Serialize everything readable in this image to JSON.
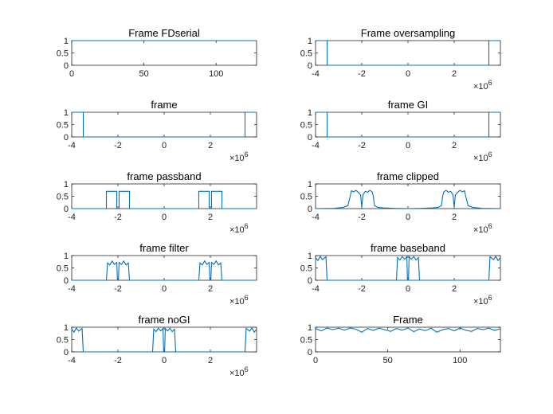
{
  "figure": {
    "background": "#ffffff",
    "line_color": "#0072BD"
  },
  "chart_data": [
    {
      "type": "line",
      "title": "Frame FDserial",
      "xlim": [
        0,
        128
      ],
      "ylim": [
        0,
        1
      ],
      "xticks": [
        {
          "v": 0,
          "label": "0"
        },
        {
          "v": 50,
          "label": "50"
        },
        {
          "v": 100,
          "label": "100"
        }
      ],
      "yticks": [
        {
          "v": 0,
          "label": "0"
        },
        {
          "v": 0.5,
          "label": "0.5"
        },
        {
          "v": 1,
          "label": "1"
        }
      ],
      "x_exponent": "",
      "series": [
        {
          "x": [
            0,
            128
          ],
          "y": [
            1,
            1
          ]
        }
      ]
    },
    {
      "type": "line",
      "title": "Frame oversampling",
      "xlim": [
        -4,
        4
      ],
      "ylim": [
        0,
        1
      ],
      "xticks": [
        {
          "v": -4,
          "label": "-4"
        },
        {
          "v": -2,
          "label": "-2"
        },
        {
          "v": 0,
          "label": "0"
        },
        {
          "v": 2,
          "label": "2"
        }
      ],
      "yticks": [
        {
          "v": 0,
          "label": "0"
        },
        {
          "v": 0.5,
          "label": "0.5"
        },
        {
          "v": 1,
          "label": "1"
        }
      ],
      "x_exponent": "6",
      "series": [
        {
          "x": [
            -4,
            -3.5,
            -3.5,
            3.5,
            3.5,
            4
          ],
          "y": [
            1,
            1,
            0,
            0,
            1,
            1
          ]
        }
      ]
    },
    {
      "type": "line",
      "title": "frame",
      "xlim": [
        -4,
        4
      ],
      "ylim": [
        0,
        1
      ],
      "xticks": [
        {
          "v": -4,
          "label": "-4"
        },
        {
          "v": -2,
          "label": "-2"
        },
        {
          "v": 0,
          "label": "0"
        },
        {
          "v": 2,
          "label": "2"
        }
      ],
      "yticks": [
        {
          "v": 0,
          "label": "0"
        },
        {
          "v": 0.5,
          "label": "0.5"
        },
        {
          "v": 1,
          "label": "1"
        }
      ],
      "x_exponent": "6",
      "series": [
        {
          "x": [
            -4,
            -3.5,
            -3.5,
            3.5,
            3.5,
            4
          ],
          "y": [
            1,
            1,
            0,
            0,
            1,
            1
          ]
        }
      ]
    },
    {
      "type": "line",
      "title": "frame GI",
      "xlim": [
        -4,
        4
      ],
      "ylim": [
        0,
        1
      ],
      "xticks": [
        {
          "v": -4,
          "label": "-4"
        },
        {
          "v": -2,
          "label": "-2"
        },
        {
          "v": 0,
          "label": "0"
        },
        {
          "v": 2,
          "label": "2"
        }
      ],
      "yticks": [
        {
          "v": 0,
          "label": "0"
        },
        {
          "v": 0.5,
          "label": "0.5"
        },
        {
          "v": 1,
          "label": "1"
        }
      ],
      "x_exponent": "6",
      "series": [
        {
          "x": [
            -4,
            -3.5,
            -3.5,
            3.5,
            3.5,
            4
          ],
          "y": [
            1,
            1,
            0,
            0,
            1,
            1
          ]
        }
      ]
    },
    {
      "type": "line",
      "title": "frame passband",
      "xlim": [
        -4,
        4
      ],
      "ylim": [
        0,
        1
      ],
      "xticks": [
        {
          "v": -4,
          "label": "-4"
        },
        {
          "v": -2,
          "label": "-2"
        },
        {
          "v": 0,
          "label": "0"
        },
        {
          "v": 2,
          "label": "2"
        }
      ],
      "yticks": [
        {
          "v": 0,
          "label": "0"
        },
        {
          "v": 0.5,
          "label": "0.5"
        },
        {
          "v": 1,
          "label": "1"
        }
      ],
      "x_exponent": "6",
      "series": [
        {
          "x": [
            -4,
            -2.5,
            -2.5,
            -2.05,
            -2.05,
            -1.95,
            -1.95,
            -1.5,
            -1.5,
            1.5,
            1.5,
            1.95,
            1.95,
            2.05,
            2.05,
            2.5,
            2.5,
            4
          ],
          "y": [
            0,
            0,
            0.7,
            0.7,
            0,
            0,
            0.7,
            0.7,
            0,
            0,
            0.7,
            0.7,
            0,
            0,
            0.7,
            0.7,
            0,
            0
          ]
        }
      ]
    },
    {
      "type": "line",
      "title": "frame clipped",
      "xlim": [
        -4,
        4
      ],
      "ylim": [
        0,
        1
      ],
      "xticks": [
        {
          "v": -4,
          "label": "-4"
        },
        {
          "v": -2,
          "label": "-2"
        },
        {
          "v": 0,
          "label": "0"
        },
        {
          "v": 2,
          "label": "2"
        }
      ],
      "yticks": [
        {
          "v": 0,
          "label": "0"
        },
        {
          "v": 0.5,
          "label": "0.5"
        },
        {
          "v": 1,
          "label": "1"
        }
      ],
      "x_exponent": "6",
      "series": [
        {
          "x": [
            -4,
            -3.2,
            -3.0,
            -2.8,
            -2.6,
            -2.5,
            -2.45,
            -2.35,
            -2.25,
            -2.15,
            -2.05,
            -2.0,
            -1.95,
            -1.85,
            -1.75,
            -1.65,
            -1.55,
            -1.5,
            -1.45,
            -1.3,
            -1.1,
            -0.6,
            0,
            0.6,
            1.1,
            1.3,
            1.45,
            1.5,
            1.55,
            1.65,
            1.75,
            1.85,
            1.95,
            2.0,
            2.05,
            2.15,
            2.25,
            2.35,
            2.45,
            2.5,
            2.6,
            2.8,
            3.0,
            3.2,
            4
          ],
          "y": [
            0.0,
            0.01,
            0.03,
            0.05,
            0.12,
            0.5,
            0.72,
            0.68,
            0.74,
            0.66,
            0.55,
            0.05,
            0.55,
            0.7,
            0.66,
            0.74,
            0.68,
            0.5,
            0.12,
            0.05,
            0.03,
            0.01,
            0.0,
            0.01,
            0.03,
            0.05,
            0.12,
            0.5,
            0.68,
            0.74,
            0.66,
            0.7,
            0.55,
            0.05,
            0.55,
            0.66,
            0.74,
            0.68,
            0.72,
            0.5,
            0.12,
            0.05,
            0.03,
            0.01,
            0.0
          ]
        }
      ]
    },
    {
      "type": "line",
      "title": "frame filter",
      "xlim": [
        -4,
        4
      ],
      "ylim": [
        0,
        1
      ],
      "xticks": [
        {
          "v": -4,
          "label": "-4"
        },
        {
          "v": -2,
          "label": "-2"
        },
        {
          "v": 0,
          "label": "0"
        },
        {
          "v": 2,
          "label": "2"
        }
      ],
      "yticks": [
        {
          "v": 0,
          "label": "0"
        },
        {
          "v": 0.5,
          "label": "0.5"
        },
        {
          "v": 1,
          "label": "1"
        }
      ],
      "x_exponent": "6",
      "series": [
        {
          "x": [
            -4,
            -2.5,
            -2.45,
            -2.35,
            -2.25,
            -2.15,
            -2.05,
            -2.02,
            -1.98,
            -1.95,
            -1.85,
            -1.75,
            -1.65,
            -1.55,
            -1.5,
            1.5,
            1.55,
            1.65,
            1.75,
            1.85,
            1.95,
            1.98,
            2.02,
            2.05,
            2.15,
            2.25,
            2.35,
            2.45,
            2.5,
            4
          ],
          "y": [
            0,
            0,
            0.7,
            0.62,
            0.78,
            0.64,
            0.72,
            0,
            0,
            0.72,
            0.64,
            0.78,
            0.62,
            0.7,
            0,
            0,
            0.7,
            0.62,
            0.78,
            0.64,
            0.72,
            0,
            0,
            0.72,
            0.64,
            0.78,
            0.62,
            0.7,
            0,
            0
          ]
        }
      ]
    },
    {
      "type": "line",
      "title": "frame baseband",
      "xlim": [
        -4,
        4
      ],
      "ylim": [
        0,
        1
      ],
      "xticks": [
        {
          "v": -4,
          "label": "-4"
        },
        {
          "v": -2,
          "label": "-2"
        },
        {
          "v": 0,
          "label": "0"
        },
        {
          "v": 2,
          "label": "2"
        }
      ],
      "yticks": [
        {
          "v": 0,
          "label": "0"
        },
        {
          "v": 0.5,
          "label": "0.5"
        },
        {
          "v": 1,
          "label": "1"
        }
      ],
      "x_exponent": "6",
      "series": [
        {
          "x": [
            -4,
            -3.9,
            -3.8,
            -3.7,
            -3.55,
            -3.5,
            3.5,
            3.55,
            3.7,
            3.8,
            3.9,
            4
          ],
          "y": [
            0.92,
            0.8,
            0.97,
            0.84,
            0.95,
            0,
            0,
            0.95,
            0.84,
            0.97,
            0.8,
            0.92
          ]
        },
        {
          "x": [
            -0.5,
            -0.45,
            -0.35,
            -0.25,
            -0.15,
            -0.05,
            -0.02,
            0.02,
            0.05,
            0.15,
            0.25,
            0.35,
            0.45,
            0.5
          ],
          "y": [
            0,
            0.92,
            0.82,
            0.96,
            0.85,
            0.95,
            0,
            0,
            0.95,
            0.85,
            0.96,
            0.82,
            0.92,
            0
          ]
        }
      ]
    },
    {
      "type": "line",
      "title": "frame noGI",
      "xlim": [
        -4,
        4
      ],
      "ylim": [
        0,
        1
      ],
      "xticks": [
        {
          "v": -4,
          "label": "-4"
        },
        {
          "v": -2,
          "label": "-2"
        },
        {
          "v": 0,
          "label": "0"
        },
        {
          "v": 2,
          "label": "2"
        }
      ],
      "yticks": [
        {
          "v": 0,
          "label": "0"
        },
        {
          "v": 0.5,
          "label": "0.5"
        },
        {
          "v": 1,
          "label": "1"
        }
      ],
      "x_exponent": "6",
      "series": [
        {
          "x": [
            -4,
            -3.9,
            -3.8,
            -3.7,
            -3.55,
            -3.5,
            3.5,
            3.55,
            3.7,
            3.8,
            3.9,
            4
          ],
          "y": [
            0.92,
            0.8,
            0.97,
            0.84,
            0.95,
            0,
            0,
            0.95,
            0.84,
            0.97,
            0.8,
            0.92
          ]
        },
        {
          "x": [
            -0.5,
            -0.45,
            -0.35,
            -0.25,
            -0.15,
            -0.05,
            -0.02,
            0.02,
            0.05,
            0.15,
            0.25,
            0.35,
            0.45,
            0.5
          ],
          "y": [
            0,
            0.92,
            0.82,
            0.96,
            0.85,
            0.95,
            0,
            0,
            0.95,
            0.85,
            0.96,
            0.82,
            0.92,
            0
          ]
        }
      ]
    },
    {
      "type": "line",
      "title": "Frame",
      "xlim": [
        0,
        128
      ],
      "ylim": [
        0,
        1
      ],
      "xticks": [
        {
          "v": 0,
          "label": "0"
        },
        {
          "v": 50,
          "label": "50"
        },
        {
          "v": 100,
          "label": "100"
        }
      ],
      "yticks": [
        {
          "v": 0,
          "label": "0"
        },
        {
          "v": 0.5,
          "label": "0.5"
        },
        {
          "v": 1,
          "label": "1"
        }
      ],
      "x_exponent": "",
      "series": [
        {
          "x": [
            0,
            4,
            8,
            12,
            16,
            20,
            24,
            28,
            32,
            36,
            40,
            44,
            48,
            52,
            56,
            60,
            64,
            68,
            72,
            76,
            80,
            84,
            88,
            92,
            96,
            100,
            104,
            108,
            112,
            116,
            120,
            124,
            128
          ],
          "y": [
            0.95,
            0.85,
            0.97,
            0.9,
            0.96,
            0.88,
            0.97,
            0.92,
            0.8,
            0.95,
            0.87,
            0.96,
            0.9,
            0.83,
            0.95,
            0.88,
            0.97,
            0.82,
            0.93,
            0.86,
            0.96,
            0.8,
            0.9,
            0.95,
            0.85,
            0.97,
            0.88,
            0.83,
            0.95,
            0.9,
            0.96,
            0.87,
            0.94
          ]
        }
      ]
    }
  ]
}
